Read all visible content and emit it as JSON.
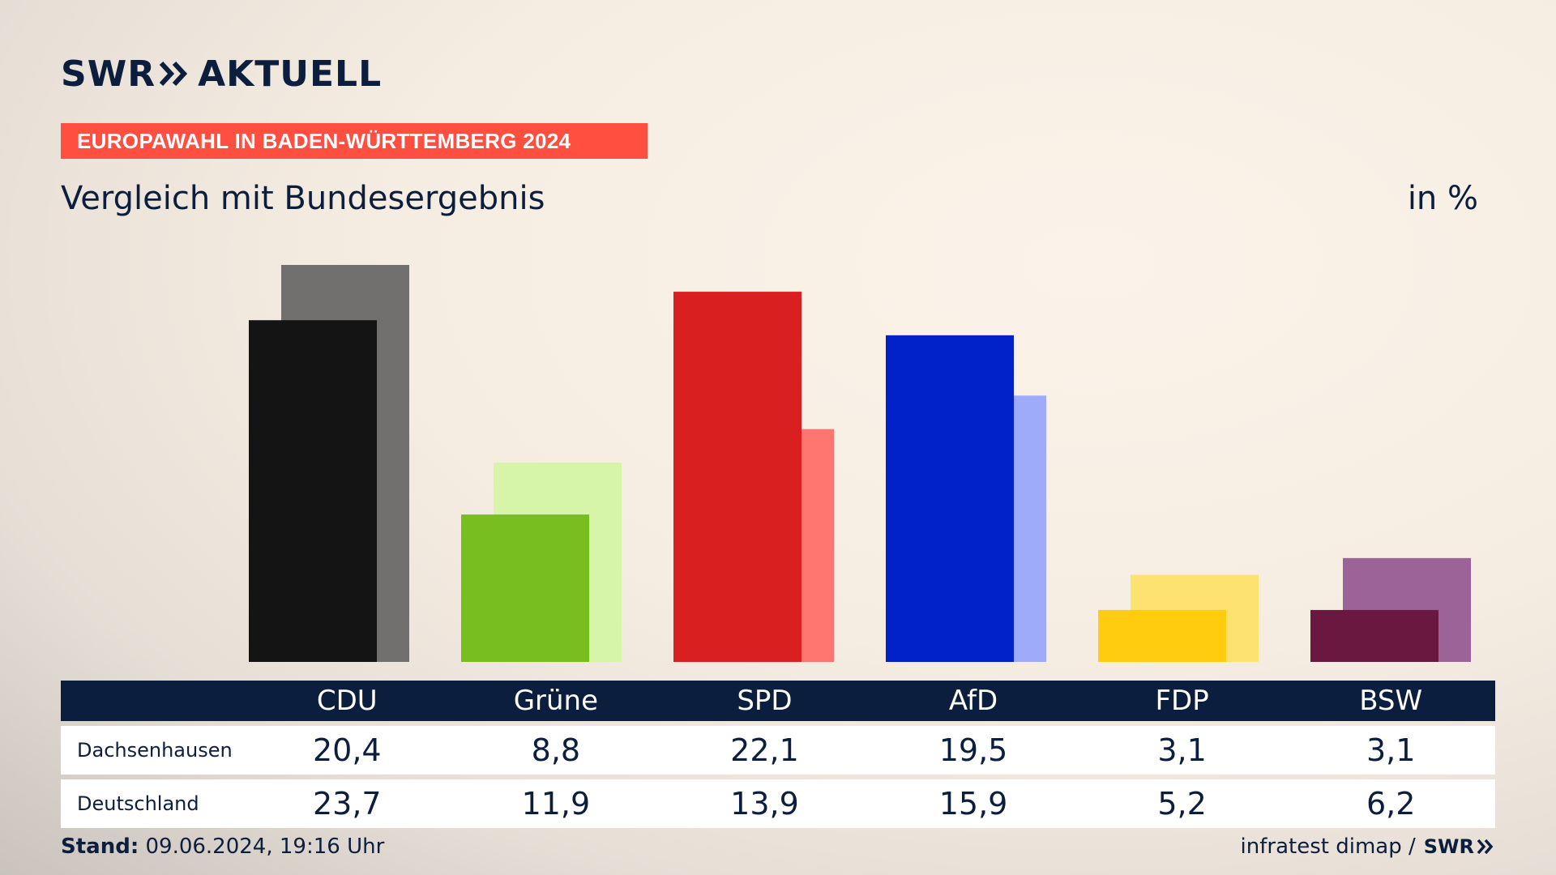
{
  "brand": {
    "name": "SWR",
    "product": "AKTUELL",
    "footer_logo": "SWR"
  },
  "kicker": "EUROPAWAHL IN BADEN-WÜRTTEMBERG 2024",
  "title": "Vergleich mit Bundesergebnis",
  "unit": "in %",
  "table": {
    "header": [
      "CDU",
      "Grüne",
      "SPD",
      "AfD",
      "FDP",
      "BSW"
    ],
    "rows": [
      {
        "label": "Dachsenhausen",
        "values": [
          "20,4",
          "8,8",
          "22,1",
          "19,5",
          "3,1",
          "3,1"
        ]
      },
      {
        "label": "Deutschland",
        "values": [
          "23,7",
          "11,9",
          "13,9",
          "15,9",
          "5,2",
          "6,2"
        ]
      }
    ]
  },
  "footer": {
    "stand_label": "Stand:",
    "stand_value": "09.06.2024, 19:16 Uhr",
    "source": "infratest dimap /"
  },
  "chart_data": {
    "type": "bar",
    "categories": [
      "CDU",
      "Grüne",
      "SPD",
      "AfD",
      "FDP",
      "BSW"
    ],
    "series": [
      {
        "name": "Dachsenhausen",
        "values": [
          20.4,
          8.8,
          22.1,
          19.5,
          3.1,
          3.1
        ],
        "colors": [
          "#141414",
          "#78be1e",
          "#d91f1f",
          "#0022c8",
          "#ffcc10",
          "#6b1840"
        ]
      },
      {
        "name": "Deutschland",
        "values": [
          23.7,
          11.9,
          13.9,
          15.9,
          5.2,
          6.2
        ],
        "colors": [
          "#72706e",
          "#d6f5a8",
          "#ff7570",
          "#9eaafa",
          "#fde272",
          "#9b6397"
        ]
      }
    ],
    "ylim": [
      0,
      23.7
    ],
    "grid": false,
    "legend": "none"
  },
  "colors": {
    "navy": "#0c1e3d",
    "kicker": "#ff4f41"
  }
}
